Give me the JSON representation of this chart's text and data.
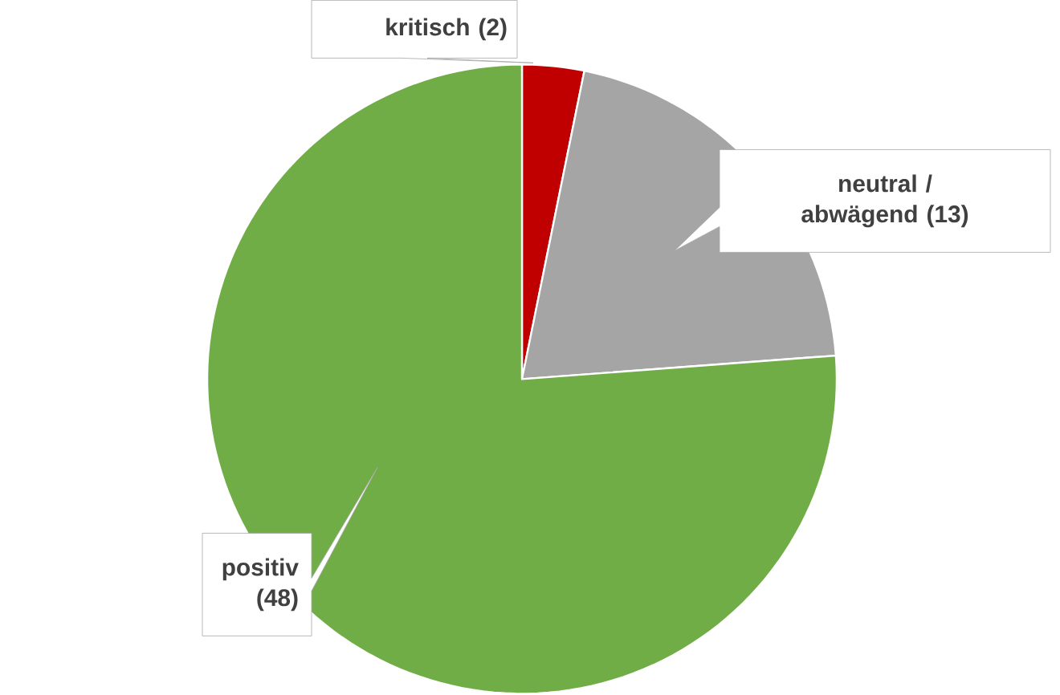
{
  "chart_data": {
    "type": "pie",
    "categories": [
      "kritisch",
      "neutral / abwägend",
      "positiv"
    ],
    "values": [
      2,
      13,
      48
    ],
    "colors": [
      "#c00000",
      "#a5a5a5",
      "#70ad47"
    ],
    "value_labels": [
      "(2)",
      "(13)",
      "(48)"
    ],
    "data_labels": true
  }
}
